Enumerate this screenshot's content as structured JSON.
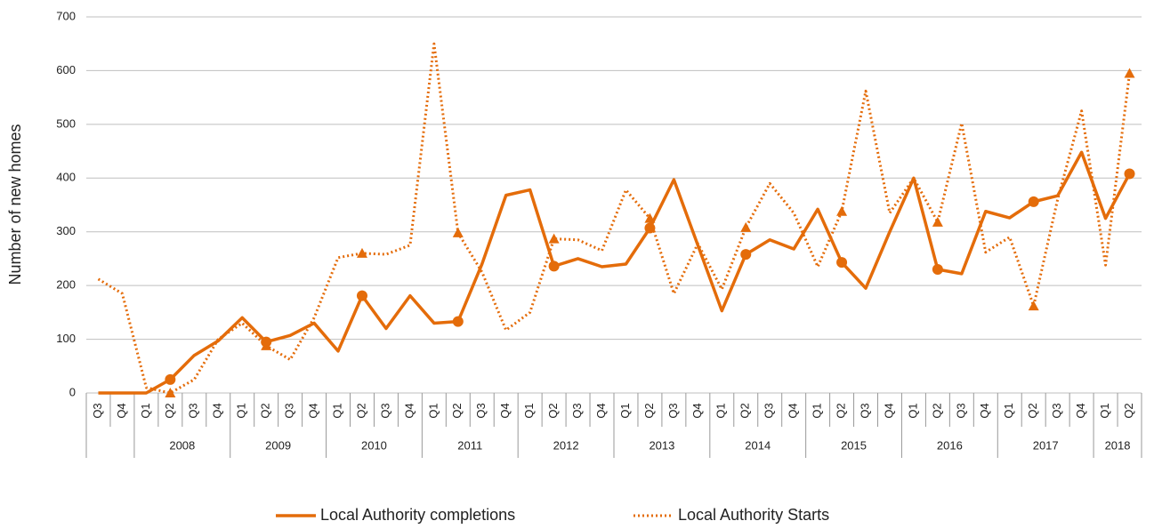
{
  "chart_data": {
    "type": "line",
    "y_label": "Number of new homes",
    "categories": [
      "Q3",
      "Q4",
      "Q1",
      "Q2",
      "Q3",
      "Q4",
      "Q1",
      "Q2",
      "Q3",
      "Q4",
      "Q1",
      "Q2",
      "Q3",
      "Q4",
      "Q1",
      "Q2",
      "Q3",
      "Q4",
      "Q1",
      "Q2",
      "Q3",
      "Q4",
      "Q1",
      "Q2",
      "Q3",
      "Q4",
      "Q1",
      "Q2",
      "Q3",
      "Q4",
      "Q1",
      "Q2",
      "Q3",
      "Q4",
      "Q1",
      "Q2",
      "Q3",
      "Q4",
      "Q1",
      "Q2",
      "Q3",
      "Q4",
      "Q1",
      "Q2"
    ],
    "category_years": [
      null,
      null,
      "2008",
      "2008",
      "2008",
      "2008",
      "2009",
      "2009",
      "2009",
      "2009",
      "2010",
      "2010",
      "2010",
      "2010",
      "2011",
      "2011",
      "2011",
      "2011",
      "2012",
      "2012",
      "2012",
      "2012",
      "2013",
      "2013",
      "2013",
      "2013",
      "2014",
      "2014",
      "2014",
      "2014",
      "2015",
      "2015",
      "2015",
      "2015",
      "2016",
      "2016",
      "2016",
      "2016",
      "2017",
      "2017",
      "2017",
      "2017",
      "2018",
      "2018"
    ],
    "series": [
      {
        "name": "Local Authority completions",
        "color": "#e46c0a",
        "style": "solid",
        "marker": "circle",
        "values": [
          0,
          0,
          0,
          25,
          70,
          97,
          140,
          95,
          107,
          130,
          78,
          181,
          120,
          181,
          130,
          133,
          240,
          368,
          378,
          236,
          250,
          235,
          240,
          307,
          397,
          275,
          153,
          258,
          285,
          268,
          342,
          243,
          195,
          300,
          400,
          230,
          222,
          338,
          326,
          356,
          367,
          448,
          325,
          408
        ]
      },
      {
        "name": "Local Authority Starts",
        "color": "#e46c0a",
        "style": "dotted",
        "marker": "triangle",
        "values": [
          212,
          185,
          10,
          0,
          25,
          100,
          130,
          88,
          62,
          140,
          252,
          260,
          258,
          275,
          650,
          298,
          225,
          117,
          150,
          287,
          285,
          265,
          378,
          325,
          185,
          278,
          193,
          308,
          390,
          335,
          235,
          338,
          562,
          335,
          400,
          318,
          502,
          262,
          290,
          162,
          360,
          525,
          238,
          595
        ]
      }
    ],
    "ylim": [
      0,
      700
    ],
    "yticks": [
      0,
      100,
      200,
      300,
      400,
      500,
      600,
      700
    ],
    "grid": true,
    "legend": "bottom"
  }
}
